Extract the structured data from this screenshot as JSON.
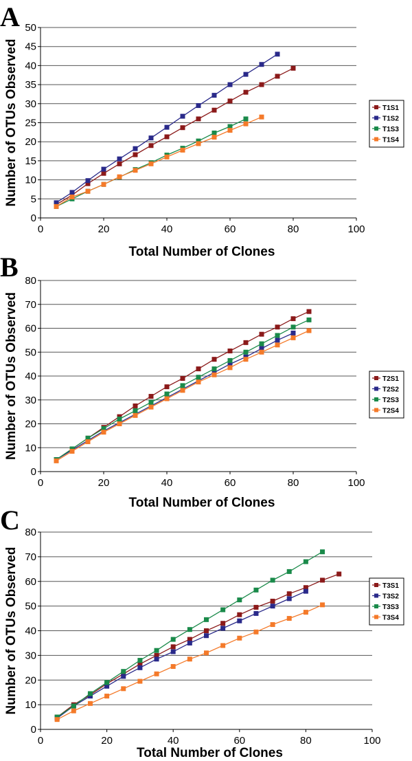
{
  "chart_data": [
    {
      "type": "line",
      "panel": "A",
      "xlabel": "Total Number of Clones",
      "ylabel": "Number of OTUs Observed",
      "xlim": [
        0,
        100
      ],
      "ylim": [
        0,
        50
      ],
      "xticks": [
        "0",
        "20",
        "40",
        "60",
        "80",
        "100"
      ],
      "yticks": [
        "0",
        "5",
        "10",
        "15",
        "20",
        "25",
        "30",
        "35",
        "40",
        "45",
        "50"
      ],
      "grid": "horizontal",
      "legend": "right",
      "series": [
        {
          "name": "T1S1",
          "color": "#8b1a1a",
          "x": [
            5,
            10,
            15,
            20,
            25,
            30,
            35,
            40,
            45,
            50,
            55,
            60,
            65,
            70,
            75,
            80
          ],
          "y": [
            3.5,
            6,
            9,
            11.7,
            14.2,
            16.6,
            19,
            21.3,
            23.7,
            26,
            28.3,
            30.7,
            33,
            35,
            37.2,
            39.3
          ]
        },
        {
          "name": "T1S2",
          "color": "#2a2a8a",
          "x": [
            5,
            10,
            15,
            20,
            25,
            30,
            35,
            40,
            45,
            50,
            55,
            60,
            65,
            70,
            75
          ],
          "y": [
            4,
            6.7,
            9.8,
            12.8,
            15.5,
            18.2,
            21,
            23.8,
            26.7,
            29.5,
            32.2,
            35,
            37.7,
            40.3,
            43
          ]
        },
        {
          "name": "T1S3",
          "color": "#1a8a4a",
          "x": [
            5,
            10,
            15,
            20,
            25,
            30,
            35,
            40,
            45,
            50,
            55,
            60,
            65
          ],
          "y": [
            3,
            5,
            7,
            8.8,
            10.7,
            12.7,
            14.5,
            16.5,
            18.3,
            20.2,
            22.3,
            24,
            26
          ]
        },
        {
          "name": "T1S4",
          "color": "#f47a2a",
          "x": [
            5,
            10,
            15,
            20,
            25,
            30,
            35,
            40,
            45,
            50,
            55,
            60,
            65,
            70
          ],
          "y": [
            3,
            5.5,
            7,
            8.8,
            10.8,
            12.5,
            14.2,
            16,
            17.8,
            19.5,
            21.2,
            23,
            24.7,
            26.5
          ]
        }
      ]
    },
    {
      "type": "line",
      "panel": "B",
      "xlabel": "Total Number of Clones",
      "ylabel": "Number of OTUs Observed",
      "xlim": [
        0,
        100
      ],
      "ylim": [
        0,
        80
      ],
      "xticks": [
        "0",
        "20",
        "40",
        "60",
        "80",
        "100"
      ],
      "yticks": [
        "0",
        "10",
        "20",
        "30",
        "40",
        "50",
        "60",
        "70",
        "80"
      ],
      "grid": "horizontal",
      "legend": "right",
      "series": [
        {
          "name": "T2S1",
          "color": "#8b1a1a",
          "x": [
            5,
            10,
            15,
            20,
            25,
            30,
            35,
            40,
            45,
            50,
            55,
            60,
            65,
            70,
            75,
            80,
            85
          ],
          "y": [
            5,
            9.5,
            14,
            18.5,
            23,
            27.5,
            31.5,
            35.5,
            39,
            43,
            47,
            50.5,
            54,
            57.5,
            60.5,
            64,
            67
          ]
        },
        {
          "name": "T2S2",
          "color": "#2a2a8a",
          "x": [
            5,
            10,
            15,
            20,
            25,
            30,
            35,
            40,
            45,
            50,
            55,
            60,
            65,
            70,
            75,
            80
          ],
          "y": [
            5,
            9,
            13,
            17,
            20.5,
            24,
            27.5,
            31,
            34.5,
            38,
            41.5,
            45,
            48,
            51.5,
            55,
            58
          ]
        },
        {
          "name": "T2S3",
          "color": "#1a8a4a",
          "x": [
            5,
            10,
            15,
            20,
            25,
            30,
            35,
            40,
            45,
            50,
            55,
            60,
            65,
            70,
            75,
            80,
            85
          ],
          "y": [
            5,
            9.5,
            14,
            18,
            22,
            25.5,
            29,
            32.5,
            36,
            39.5,
            43,
            46.5,
            50,
            53.5,
            57,
            60.5,
            63.5
          ]
        },
        {
          "name": "T2S4",
          "color": "#f47a2a",
          "x": [
            5,
            10,
            15,
            20,
            25,
            30,
            35,
            40,
            45,
            50,
            55,
            60,
            65,
            70,
            75,
            80,
            85
          ],
          "y": [
            4.5,
            8.5,
            12.5,
            16.5,
            20,
            23.5,
            27,
            30.5,
            34,
            37.5,
            40.5,
            43.5,
            47,
            50,
            53,
            56,
            59
          ]
        }
      ]
    },
    {
      "type": "line",
      "panel": "C",
      "xlabel": "Total Number of Clones",
      "ylabel": "Number of OTUs Observed",
      "xlim": [
        0,
        100
      ],
      "ylim": [
        0,
        80
      ],
      "xticks": [
        "0",
        "20",
        "40",
        "60",
        "80",
        "100"
      ],
      "yticks": [
        "0",
        "10",
        "20",
        "30",
        "40",
        "50",
        "60",
        "70",
        "80"
      ],
      "grid": "horizontal",
      "legend": "right",
      "series": [
        {
          "name": "T3S1",
          "color": "#8b1a1a",
          "x": [
            5,
            10,
            15,
            20,
            25,
            30,
            35,
            40,
            45,
            50,
            55,
            60,
            65,
            70,
            75,
            80,
            85,
            90
          ],
          "y": [
            5,
            10,
            14,
            18.5,
            22.5,
            26.5,
            30,
            33.5,
            36.5,
            40,
            43,
            46.5,
            49.5,
            52,
            55,
            57.5,
            60.5,
            63
          ]
        },
        {
          "name": "T3S2",
          "color": "#2a2a8a",
          "x": [
            5,
            10,
            15,
            20,
            25,
            30,
            35,
            40,
            45,
            50,
            55,
            60,
            65,
            70,
            75,
            80
          ],
          "y": [
            4.5,
            9.5,
            13.5,
            17.5,
            21.5,
            25,
            28.5,
            31.5,
            35,
            38,
            41,
            44,
            47,
            50,
            53,
            56
          ]
        },
        {
          "name": "T3S3",
          "color": "#1a8a4a",
          "x": [
            5,
            10,
            15,
            20,
            25,
            30,
            35,
            40,
            45,
            50,
            55,
            60,
            65,
            70,
            75,
            80,
            85
          ],
          "y": [
            5,
            9.5,
            14.5,
            19,
            23.5,
            28,
            32,
            36.5,
            40.5,
            44.5,
            48.5,
            52.5,
            56.5,
            60.5,
            64,
            68,
            72
          ]
        },
        {
          "name": "T3S4",
          "color": "#f47a2a",
          "x": [
            5,
            10,
            15,
            20,
            25,
            30,
            35,
            40,
            45,
            50,
            55,
            60,
            65,
            70,
            75,
            80,
            85
          ],
          "y": [
            4,
            7.5,
            10.5,
            13.5,
            16.5,
            19.5,
            22.5,
            25.5,
            28.5,
            31,
            34,
            37,
            39.5,
            42.5,
            45,
            47.5,
            50.5
          ]
        }
      ]
    }
  ]
}
